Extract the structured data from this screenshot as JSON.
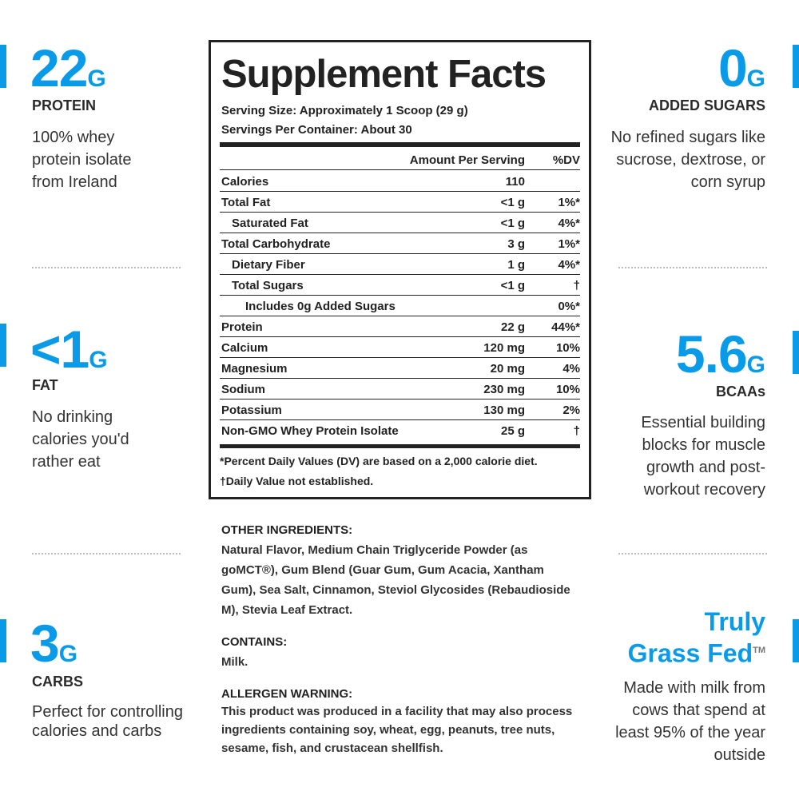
{
  "left_stats": [
    {
      "value": "22",
      "unit": "G",
      "label": "PROTEIN",
      "description": "100% whey protein isolate from Ireland"
    },
    {
      "value": "<1",
      "unit": "G",
      "label": "FAT",
      "description": "No drinking calories you'd rather eat"
    },
    {
      "value": "3",
      "unit": "G",
      "label": "CARBS",
      "description": "Perfect for controlling calories and carbs"
    }
  ],
  "right_stats": [
    {
      "value": "0",
      "unit": "G",
      "label": "ADDED SUGARS",
      "description": "No refined sugars like sucrose, dextrose, or corn syrup"
    },
    {
      "value": "5.6",
      "unit": "G",
      "label": "BCAAs",
      "description": "Essential building blocks for muscle growth and post-workout recovery"
    },
    {
      "title_lines": [
        "Truly",
        "Grass Fed"
      ],
      "trademark": "TM",
      "description": "Made with milk from cows that spend at least 95% of the year outside"
    }
  ],
  "supplement_facts": {
    "title": "Supplement Facts",
    "serving_size": "Serving Size: Approximately 1 Scoop (29 g)",
    "servings_per_container": "Servings Per Container: About 30",
    "header": {
      "amount": "Amount Per Serving",
      "dv": "%DV"
    },
    "rows": [
      {
        "name": "Calories",
        "amount": "110",
        "dv": "",
        "level": 0
      },
      {
        "name": "Total Fat",
        "amount": "<1 g",
        "dv": "1%*",
        "level": 0
      },
      {
        "name": "Saturated Fat",
        "amount": "<1 g",
        "dv": "4%*",
        "level": 1
      },
      {
        "name": "Total Carbohydrate",
        "amount": "3 g",
        "dv": "1%*",
        "level": 0
      },
      {
        "name": "Dietary Fiber",
        "amount": "1 g",
        "dv": "4%*",
        "level": 1
      },
      {
        "name": "Total Sugars",
        "amount": "<1 g",
        "dv": "†",
        "level": 1
      },
      {
        "name": "Includes 0g Added Sugars",
        "amount": "",
        "dv": "0%*",
        "level": 2
      },
      {
        "name": "Protein",
        "amount": "22 g",
        "dv": "44%*",
        "level": 0
      },
      {
        "name": "Calcium",
        "amount": "120 mg",
        "dv": "10%",
        "level": 0
      },
      {
        "name": "Magnesium",
        "amount": "20 mg",
        "dv": "4%",
        "level": 0
      },
      {
        "name": "Sodium",
        "amount": "230 mg",
        "dv": "10%",
        "level": 0
      },
      {
        "name": "Potassium",
        "amount": "130 mg",
        "dv": "2%",
        "level": 0
      },
      {
        "name": "Non-GMO Whey Protein Isolate",
        "amount": "25 g",
        "dv": "†",
        "level": 0
      }
    ],
    "footnotes": [
      "*Percent Daily Values (DV) are based on a 2,000 calorie diet.",
      "†Daily Value not established."
    ]
  },
  "other_ingredients": {
    "heading": "OTHER INGREDIENTS:",
    "text": "Natural Flavor, Medium Chain Triglyceride Powder (as goMCT®), Gum Blend (Guar Gum, Gum Acacia, Xantham Gum), Sea Salt, Cinnamon, Steviol Glycosides (Rebaudioside M), Stevia Leaf Extract."
  },
  "contains": {
    "heading": "CONTAINS:",
    "text": "Milk."
  },
  "allergen_warning": {
    "heading": "ALLERGEN WARNING:",
    "text": "This product was produced in a facility that may also process ingredients containing soy, wheat, egg, peanuts, tree nuts, sesame, fish, and crustacean shellfish."
  }
}
